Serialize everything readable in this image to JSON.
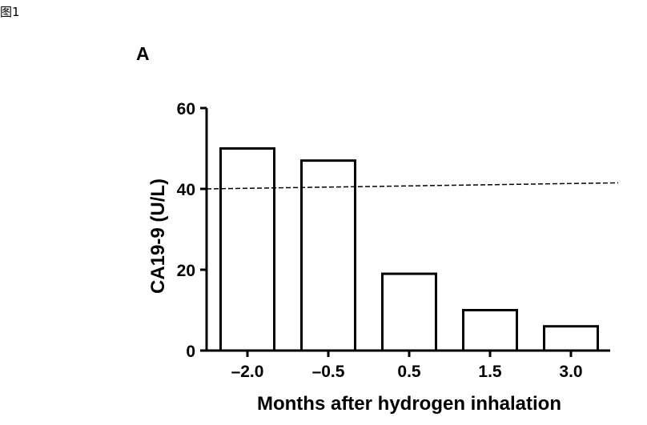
{
  "figure_caption": "图1",
  "panel_label": "A",
  "chart_data": {
    "type": "bar",
    "categories": [
      "–2.0",
      "–0.5",
      "0.5",
      "1.5",
      "3.0"
    ],
    "values": [
      50,
      47,
      19,
      10,
      6
    ],
    "xlabel": "Months after hydrogen inhalation",
    "ylabel": "CA19-9 (U/L)",
    "ylim": [
      0,
      60
    ],
    "yticks": [
      0,
      20,
      40,
      60
    ],
    "reference_line": {
      "style": "dashed",
      "y_start": 40,
      "y_end": 41.5
    },
    "bar_fill": "#ffffff",
    "bar_stroke": "#000000",
    "grid": false
  }
}
